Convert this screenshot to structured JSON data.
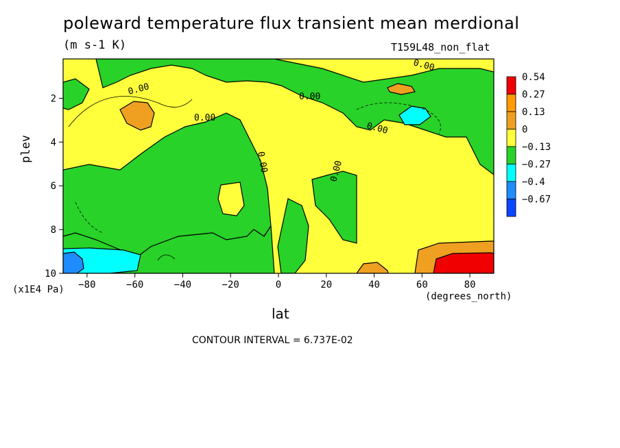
{
  "chart_data": {
    "type": "heatmap",
    "title": "poleward temperature flux transient mean merdional",
    "units": "(m s-1 K)",
    "dataset_label": "T159L48_non_flat",
    "xlabel": "lat",
    "xunit": "(degrees_north)",
    "ylabel": "plev",
    "yunit": "(x1E4 Pa)",
    "x_ticks": [
      -80,
      -60,
      -40,
      -20,
      0,
      20,
      40,
      60,
      80
    ],
    "y_ticks": [
      2,
      4,
      6,
      8,
      10
    ],
    "xlim": [
      -90,
      90
    ],
    "ylim": [
      0.2,
      10
    ],
    "contour_interval": "CONTOUR INTERVAL = 6.737E-02",
    "contour_label": "0.00",
    "legend": {
      "labels": [
        "0.54",
        "0.27",
        "0.13",
        "0",
        "−0.13",
        "−0.27",
        "−0.4",
        "−0.67"
      ],
      "colors": [
        "#f00000",
        "#ff9a00",
        "#f0a020",
        "#ffff3c",
        "#28d228",
        "#00ffff",
        "#1e8cff",
        "#0a46ff"
      ]
    },
    "regions": [
      {
        "lat": 70,
        "plev": 9.5,
        "value": 0.4,
        "color": "#f00000"
      },
      {
        "lat": -60,
        "plev": 2.7,
        "value": 0.15,
        "color": "#f0a020"
      },
      {
        "lat": 50,
        "plev": 1.4,
        "value": 0.15,
        "color": "#f0a020"
      },
      {
        "lat": 57,
        "plev": 2.8,
        "value": -0.15,
        "color": "#00ffff"
      },
      {
        "lat": -83,
        "plev": 9.5,
        "value": -0.3,
        "color": "#00ffff"
      },
      {
        "lat": -87,
        "plev": 9.8,
        "value": -0.45,
        "color": "#1e8cff"
      }
    ]
  }
}
